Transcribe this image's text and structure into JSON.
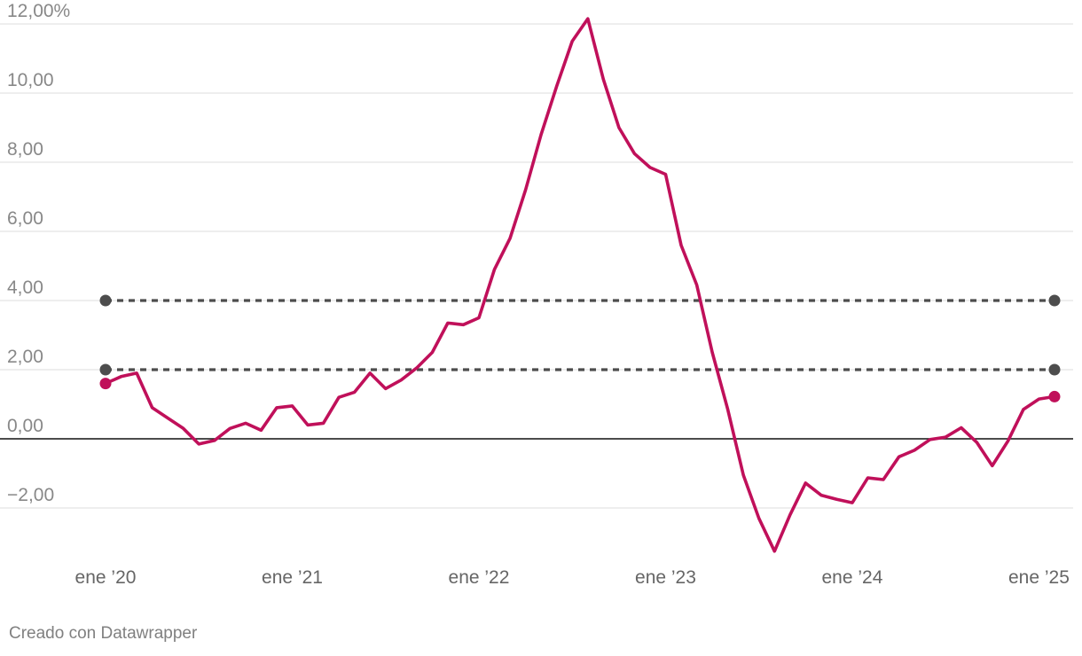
{
  "chart_data": {
    "type": "line",
    "x_tick_labels": [
      "ene ’20",
      "ene ’21",
      "ene ’22",
      "ene ’23",
      "ene ’24",
      "ene ’25"
    ],
    "y_tick_labels": [
      "12,00%",
      "10,00",
      "8,00",
      "6,00",
      "4,00",
      "2,00",
      "0,00",
      "−2,00"
    ],
    "y_ticks": [
      12,
      10,
      8,
      6,
      4,
      2,
      0,
      -2
    ],
    "ylim": [
      -3.3,
      12.2
    ],
    "xlim": [
      "2020-01",
      "2025-02"
    ],
    "grid": true,
    "series": [
      {
        "color": "#c0105a",
        "x": [
          "2020-01",
          "2020-02",
          "2020-03",
          "2020-04",
          "2020-05",
          "2020-06",
          "2020-07",
          "2020-08",
          "2020-09",
          "2020-10",
          "2020-11",
          "2020-12",
          "2021-01",
          "2021-02",
          "2021-03",
          "2021-04",
          "2021-05",
          "2021-06",
          "2021-07",
          "2021-08",
          "2021-09",
          "2021-10",
          "2021-11",
          "2021-12",
          "2022-01",
          "2022-02",
          "2022-03",
          "2022-04",
          "2022-05",
          "2022-06",
          "2022-07",
          "2022-08",
          "2022-09",
          "2022-10",
          "2022-11",
          "2022-12",
          "2023-01",
          "2023-02",
          "2023-03",
          "2023-04",
          "2023-05",
          "2023-06",
          "2023-07",
          "2023-08",
          "2023-09",
          "2023-10",
          "2023-11",
          "2023-12",
          "2024-01",
          "2024-02",
          "2024-03",
          "2024-04",
          "2024-05",
          "2024-06",
          "2024-07",
          "2024-08",
          "2024-09",
          "2024-10",
          "2024-11",
          "2024-12",
          "2025-01",
          "2025-02"
        ],
        "values": [
          1.6,
          1.8,
          1.9,
          0.9,
          0.6,
          0.3,
          -0.15,
          -0.05,
          0.3,
          0.45,
          0.25,
          0.9,
          0.95,
          0.4,
          0.45,
          1.2,
          1.35,
          1.9,
          1.45,
          1.7,
          2.05,
          2.5,
          3.35,
          3.3,
          3.5,
          4.9,
          5.8,
          7.2,
          8.8,
          10.2,
          11.5,
          12.15,
          10.4,
          9.0,
          8.25,
          7.85,
          7.65,
          5.6,
          4.45,
          2.5,
          0.85,
          -1.05,
          -2.3,
          -3.25,
          -2.2,
          -1.28,
          -1.63,
          -1.75,
          -1.85,
          -1.13,
          -1.18,
          -0.52,
          -0.33,
          -0.02,
          0.05,
          0.32,
          -0.1,
          -0.78,
          -0.07,
          0.85,
          1.15,
          1.22
        ]
      },
      {
        "color": "#4d4d4d",
        "x": [
          "2020-01",
          "2025-02"
        ],
        "values": [
          4,
          4
        ]
      },
      {
        "color": "#4d4d4d",
        "x": [
          "2020-01",
          "2025-02"
        ],
        "values": [
          2,
          2
        ]
      }
    ]
  },
  "footer": {
    "credit": "Creado con Datawrapper"
  }
}
